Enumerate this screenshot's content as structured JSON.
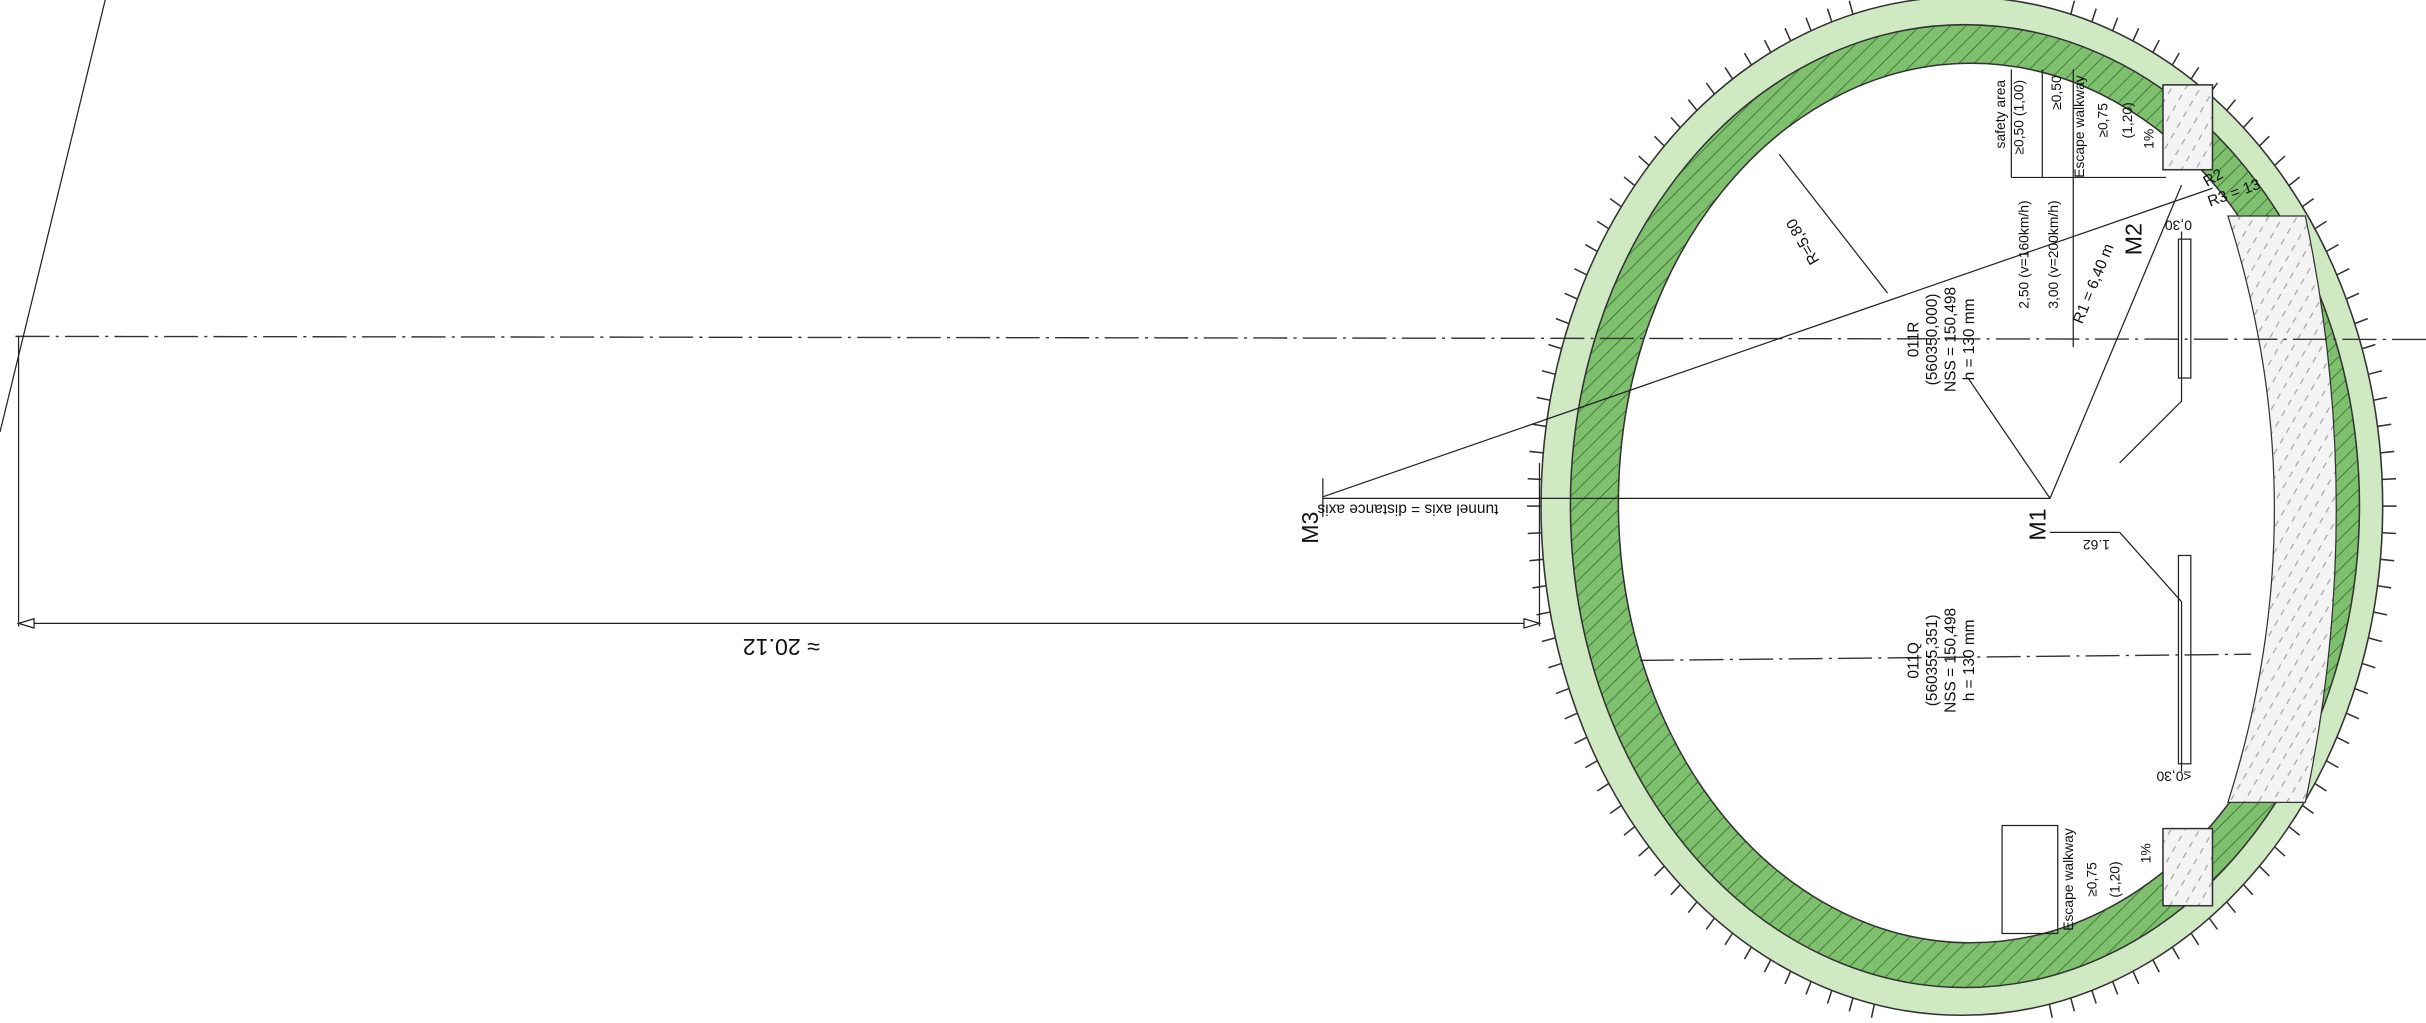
{
  "labels": {
    "dimension": "≈ 20.12",
    "tunnel_axis": "tunnel axis = distance axis",
    "m1": "M1",
    "m2": "M2",
    "m3": "M3",
    "offset_m1": "1.62",
    "radius_r": "R=5,80",
    "radius_r1": "R1 = 6,40 m",
    "radius_r2": "R2",
    "radius_r3": "R3 = 13",
    "track_r": {
      "name": "011R",
      "station": "(560350,000)",
      "nss": "NSS = 150,498",
      "h": "h = 130 mm"
    },
    "track_q": {
      "name": "011Q",
      "station": "(560355,351)",
      "nss": "NSS = 150,498",
      "h": "h = 130 mm"
    },
    "safety_area": "safety area",
    "safety_dim": "≥0,50 (1,00)",
    "min_050": "≥0,50",
    "escape_top": {
      "title": "Escape walkway",
      "min": "≥0,75",
      "alt": "(1,20)",
      "slope": "1%"
    },
    "escape_bottom": {
      "title": "Escape walkway",
      "min": "≥0,75",
      "alt": "(1,20)",
      "slope": "1%"
    },
    "dist_160": "2,50 (v=160km/h)",
    "dist_200": "3,00 (v=200km/h)",
    "gap_top": "0,30",
    "gap_bottom": "≤0,30"
  }
}
